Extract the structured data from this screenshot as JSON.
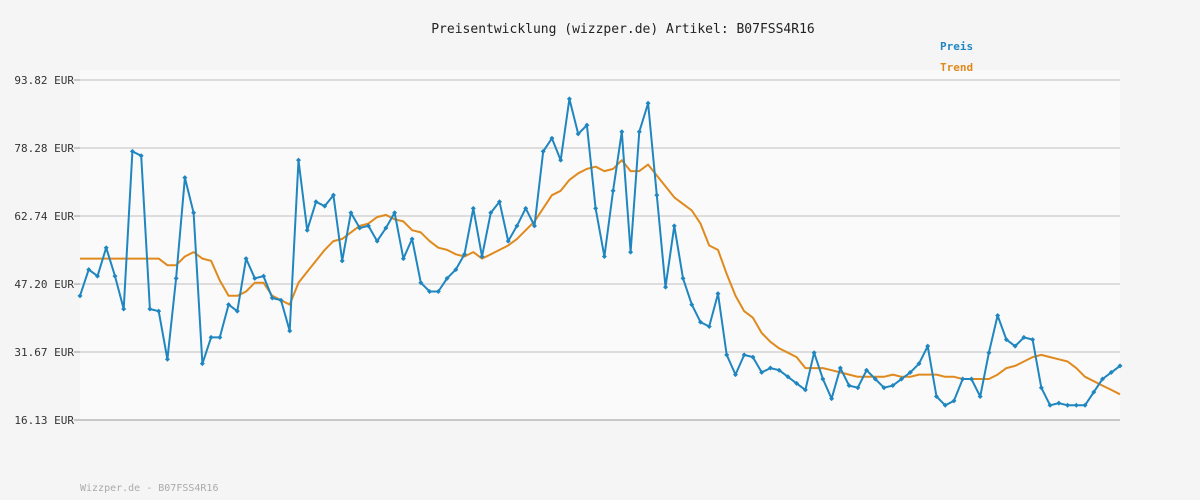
{
  "chart_data": {
    "type": "line",
    "title": "Preisentwicklung (wizzper.de) Artikel: B07FSS4R16",
    "xlabel": "",
    "ylabel": "",
    "y_tick_labels": [
      "93.82 EUR",
      "78.28 EUR",
      "62.74 EUR",
      "47.20 EUR",
      "31.67 EUR",
      "16.13 EUR"
    ],
    "y_ticks": [
      93.82,
      78.28,
      62.74,
      47.2,
      31.67,
      16.13
    ],
    "ylim": [
      16.13,
      93.82
    ],
    "grid": "horizontal",
    "legend_position": "top-right",
    "series": [
      {
        "name": "Preis",
        "color": "#1f86c0",
        "marker": "diamond",
        "values": [
          44.5,
          50.5,
          49,
          55.5,
          49,
          41.5,
          77.5,
          76.5,
          41.5,
          41,
          30,
          48.5,
          71.5,
          63.5,
          29,
          35,
          35,
          42.5,
          41,
          53,
          48.5,
          49,
          44,
          43.5,
          36.5,
          75.5,
          59.5,
          66,
          65,
          67.5,
          52.5,
          63.5,
          60,
          60.5,
          57,
          60,
          63.5,
          53,
          57.5,
          47.5,
          45.5,
          45.5,
          48.5,
          50.5,
          54,
          64.5,
          53.5,
          63.5,
          66,
          57,
          60.5,
          64.5,
          60.5,
          77.5,
          80.5,
          75.5,
          89.5,
          81.5,
          83.5,
          64.5,
          53.5,
          68.5,
          82,
          54.5,
          82,
          88.5,
          67.5,
          46.5,
          60.5,
          48.5,
          42.5,
          38.5,
          37.5,
          45,
          31,
          26.5,
          31,
          30.5,
          27,
          28,
          27.5,
          26,
          24.5,
          23,
          31.5,
          25.5,
          21,
          28,
          24,
          23.5,
          27.5,
          25.5,
          23.5,
          24,
          25.5,
          27,
          29,
          33,
          21.5,
          19.5,
          20.5,
          25.5,
          25.5,
          21.5,
          31.5,
          40,
          34.5,
          33,
          35,
          34.5,
          23.5,
          19.5,
          20,
          19.5,
          19.5,
          19.5,
          22.5,
          25.5,
          27,
          28.5
        ]
      },
      {
        "name": "Trend",
        "color": "#e08a1e",
        "marker": "none",
        "values": [
          53,
          53,
          53,
          53,
          53,
          53,
          53,
          53,
          53,
          53,
          51.5,
          51.5,
          53.5,
          54.5,
          53,
          52.5,
          48,
          44.5,
          44.5,
          45.5,
          47.5,
          47.5,
          44.5,
          43.5,
          42.5,
          47.5,
          50,
          52.5,
          55,
          57,
          57.5,
          59,
          60.5,
          61,
          62.5,
          63,
          62,
          61.5,
          59.5,
          59,
          57,
          55.5,
          55,
          54,
          53.5,
          54.5,
          53,
          54,
          55,
          56,
          57.5,
          59.5,
          61.5,
          64.5,
          67.5,
          68.5,
          71,
          72.5,
          73.5,
          74,
          73,
          73.5,
          75.5,
          73,
          73,
          74.5,
          72,
          69.5,
          67,
          65.5,
          64,
          61,
          56,
          55,
          49.5,
          44.5,
          41,
          39.5,
          36,
          34,
          32.5,
          31.5,
          30.5,
          28,
          28,
          28,
          27.5,
          27,
          26.5,
          26,
          26,
          26,
          26,
          26.5,
          26,
          26,
          26.5,
          26.5,
          26.5,
          26,
          26,
          25.5,
          25.5,
          25.5,
          25.5,
          26.5,
          28,
          28.5,
          29.5,
          30.5,
          31,
          30.5,
          30,
          29.5,
          28,
          26,
          25,
          24,
          23,
          22
        ]
      }
    ]
  },
  "footer": "Wizzper.de - B07FSS4R16"
}
